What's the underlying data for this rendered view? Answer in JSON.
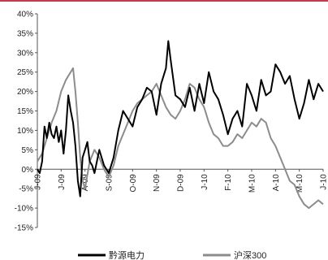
{
  "chart_data": {
    "type": "line",
    "title": "",
    "xlabel": "",
    "ylabel": "",
    "ylim": [
      -15,
      40
    ],
    "y_ticks": [
      -15,
      -10,
      -5,
      0,
      5,
      10,
      15,
      20,
      25,
      30,
      35,
      40
    ],
    "y_tick_format": "percent",
    "x_tick_labels": [
      "J-09",
      "J-09",
      "A-09",
      "S-09",
      "O-09",
      "N-09",
      "D-09",
      "J-10",
      "F-10",
      "M-10",
      "A-10",
      "M-10",
      "J-10"
    ],
    "x_tick_positions": [
      0,
      1,
      2,
      3,
      4,
      5,
      6,
      7,
      8,
      9,
      10,
      11,
      12
    ],
    "x_range": [
      0,
      12
    ],
    "grid": false,
    "legend_position": "bottom",
    "series": [
      {
        "name": "黔源电力",
        "color": "#000000",
        "x": [
          0,
          0.1,
          0.2,
          0.3,
          0.4,
          0.5,
          0.6,
          0.7,
          0.8,
          0.9,
          1.0,
          1.1,
          1.2,
          1.3,
          1.4,
          1.5,
          1.6,
          1.7,
          1.8,
          1.9,
          2.0,
          2.1,
          2.2,
          2.3,
          2.4,
          2.6,
          2.8,
          3.0,
          3.2,
          3.4,
          3.6,
          3.8,
          4.0,
          4.2,
          4.4,
          4.6,
          4.8,
          5.0,
          5.2,
          5.4,
          5.5,
          5.6,
          5.8,
          6.0,
          6.2,
          6.4,
          6.6,
          6.8,
          7.0,
          7.2,
          7.4,
          7.6,
          7.8,
          8.0,
          8.2,
          8.4,
          8.6,
          8.8,
          9.0,
          9.2,
          9.4,
          9.6,
          9.8,
          10.0,
          10.2,
          10.4,
          10.6,
          10.8,
          11.0,
          11.2,
          11.4,
          11.6,
          11.8,
          12.0
        ],
        "values": [
          0,
          -1,
          2,
          11,
          8,
          12,
          9,
          8,
          11,
          7,
          10,
          4,
          10,
          19,
          15,
          12,
          6,
          -3,
          -7,
          3,
          5,
          7,
          2,
          1,
          -1,
          5,
          1,
          -1,
          3,
          10,
          15,
          13,
          11,
          16,
          18,
          21,
          20,
          14,
          22,
          26,
          33,
          28,
          19,
          18,
          16,
          21,
          15,
          22,
          17,
          25,
          20,
          18,
          14,
          9,
          13,
          15,
          11,
          22,
          19,
          15,
          23,
          19,
          20,
          27,
          25,
          22,
          24,
          18,
          13,
          17,
          23,
          18,
          22,
          20
        ]
      },
      {
        "name": "沪深300",
        "color": "#8c8c8c",
        "x": [
          0,
          0.2,
          0.4,
          0.6,
          0.8,
          1.0,
          1.2,
          1.4,
          1.5,
          1.6,
          1.7,
          1.8,
          1.9,
          2.0,
          2.2,
          2.4,
          2.6,
          2.8,
          3.0,
          3.2,
          3.4,
          3.6,
          3.8,
          4.0,
          4.2,
          4.4,
          4.6,
          4.8,
          5.0,
          5.2,
          5.4,
          5.6,
          5.8,
          6.0,
          6.2,
          6.4,
          6.6,
          6.8,
          7.0,
          7.2,
          7.4,
          7.6,
          7.8,
          8.0,
          8.2,
          8.4,
          8.6,
          8.8,
          9.0,
          9.2,
          9.4,
          9.6,
          9.8,
          10.0,
          10.2,
          10.4,
          10.6,
          10.8,
          11.0,
          11.2,
          11.4,
          11.6,
          11.8,
          12.0
        ],
        "values": [
          2,
          4,
          8,
          12,
          15,
          20,
          23,
          25,
          26,
          20,
          12,
          3,
          -3,
          -5,
          2,
          5,
          3,
          0,
          -2,
          1,
          6,
          9,
          12,
          15,
          17,
          18,
          19,
          20,
          22,
          19,
          16,
          14,
          13,
          15,
          18,
          22,
          21,
          18,
          16,
          12,
          9,
          8,
          6,
          6,
          7,
          9,
          8,
          10,
          12,
          11,
          13,
          12,
          8,
          6,
          3,
          0,
          -3,
          -4,
          -7,
          -9,
          -10,
          -9,
          -8,
          -9
        ]
      }
    ]
  }
}
